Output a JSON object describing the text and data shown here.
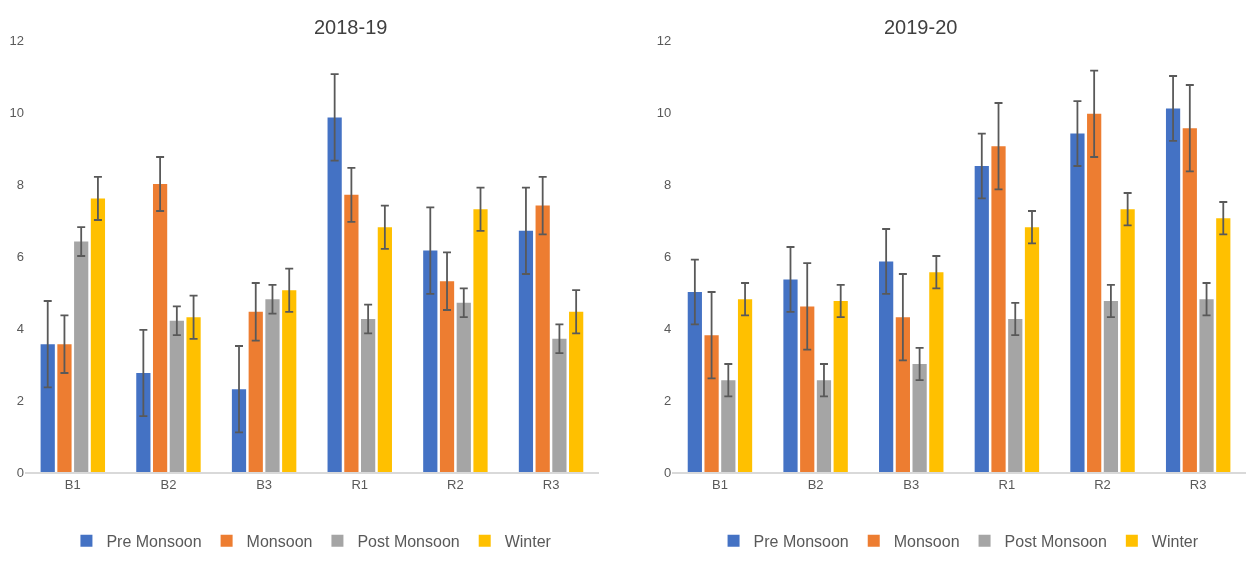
{
  "chart_data": [
    {
      "type": "bar",
      "title": "2018-19",
      "categories": [
        "B1",
        "B2",
        "B3",
        "R1",
        "R2",
        "R3"
      ],
      "ylim": [
        0,
        12
      ],
      "yticks": [
        0,
        2,
        4,
        6,
        8,
        10,
        12
      ],
      "grid": false,
      "legend": "bottom",
      "series": [
        {
          "name": "Pre Monsoon",
          "color": "#4472c4",
          "values": [
            3.55,
            2.75,
            2.3,
            9.85,
            6.15,
            6.7
          ],
          "errors": [
            1.2,
            1.2,
            1.2,
            1.2,
            1.2,
            1.2
          ]
        },
        {
          "name": "Monsoon",
          "color": "#ed7d31",
          "values": [
            3.55,
            8.0,
            4.45,
            7.7,
            5.3,
            7.4
          ],
          "errors": [
            0.8,
            0.75,
            0.8,
            0.75,
            0.8,
            0.8
          ]
        },
        {
          "name": "Post Monsoon",
          "color": "#a5a5a5",
          "values": [
            6.4,
            4.2,
            4.8,
            4.25,
            4.7,
            3.7
          ],
          "errors": [
            0.4,
            0.4,
            0.4,
            0.4,
            0.4,
            0.4
          ]
        },
        {
          "name": "Winter",
          "color": "#ffc000",
          "values": [
            7.6,
            4.3,
            5.05,
            6.8,
            7.3,
            4.45
          ],
          "errors": [
            0.6,
            0.6,
            0.6,
            0.6,
            0.6,
            0.6
          ]
        }
      ]
    },
    {
      "type": "bar",
      "title": "2019-20",
      "categories": [
        "B1",
        "B2",
        "B3",
        "R1",
        "R2",
        "R3"
      ],
      "ylim": [
        0,
        12
      ],
      "yticks": [
        0,
        2,
        4,
        6,
        8,
        10,
        12
      ],
      "grid": false,
      "legend": "bottom",
      "series": [
        {
          "name": "Pre Monsoon",
          "color": "#4472c4",
          "values": [
            5.0,
            5.35,
            5.85,
            8.5,
            9.4,
            10.1
          ],
          "errors": [
            0.9,
            0.9,
            0.9,
            0.9,
            0.9,
            0.9
          ]
        },
        {
          "name": "Monsoon",
          "color": "#ed7d31",
          "values": [
            3.8,
            4.6,
            4.3,
            9.05,
            9.95,
            9.55
          ],
          "errors": [
            1.2,
            1.2,
            1.2,
            1.2,
            1.2,
            1.2
          ]
        },
        {
          "name": "Post Monsoon",
          "color": "#a5a5a5",
          "values": [
            2.55,
            2.55,
            3.0,
            4.25,
            4.75,
            4.8
          ],
          "errors": [
            0.45,
            0.45,
            0.45,
            0.45,
            0.45,
            0.45
          ]
        },
        {
          "name": "Winter",
          "color": "#ffc000",
          "values": [
            4.8,
            4.75,
            5.55,
            6.8,
            7.3,
            7.05
          ],
          "errors": [
            0.45,
            0.45,
            0.45,
            0.45,
            0.45,
            0.45
          ]
        }
      ]
    }
  ]
}
